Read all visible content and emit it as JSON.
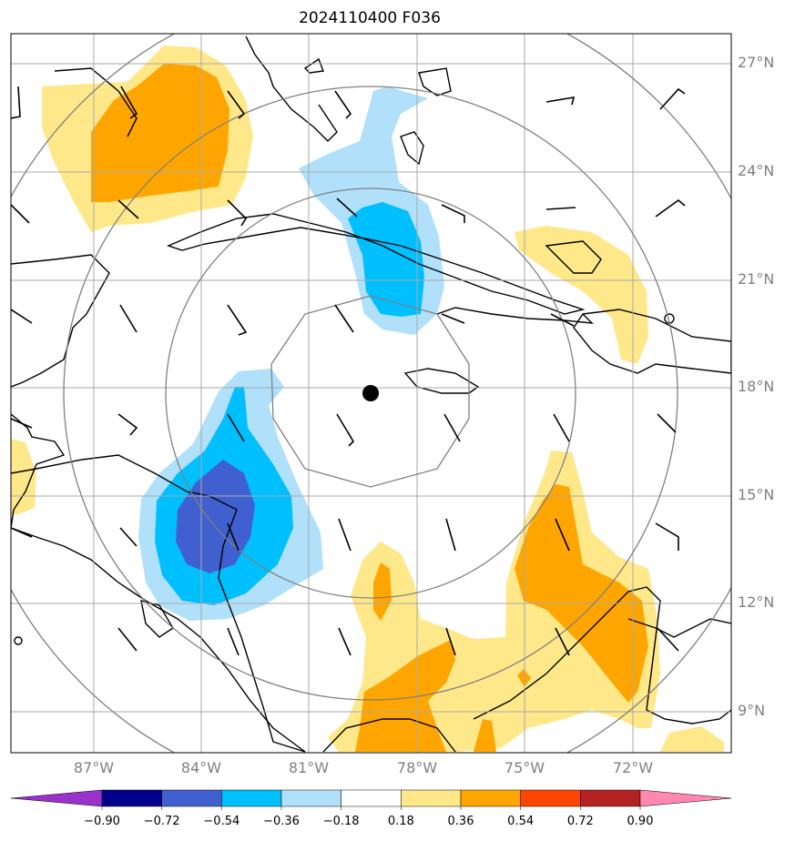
{
  "title": "2024110400 F036",
  "lat_labels": [
    "27°N",
    "24°N",
    "21°N",
    "18°N",
    "15°N",
    "12°N",
    "9°N"
  ],
  "lon_labels": [
    "87°W",
    "84°W",
    "81°W",
    "78°W",
    "75°W",
    "72°W"
  ],
  "colorbar": {
    "ticks": [
      "−0.90",
      "−0.72",
      "−0.54",
      "−0.36",
      "−0.18",
      "0.18",
      "0.36",
      "0.54",
      "0.72",
      "0.90"
    ],
    "colors": [
      "#9932cc",
      "#00008b",
      "#4060cf",
      "#00bfff",
      "#b0e0fa",
      "#ffffff",
      "#ffe88a",
      "#ffa500",
      "#ff4500",
      "#b22222",
      "#ff88b0"
    ]
  },
  "colors": {
    "lightyellow": "#ffe88a",
    "orange": "#ffa500",
    "lightblue": "#b0e0fa",
    "deepskyblue": "#00bfff",
    "royalblue": "#4060cf"
  },
  "center_marker": "storm-center-dot"
}
